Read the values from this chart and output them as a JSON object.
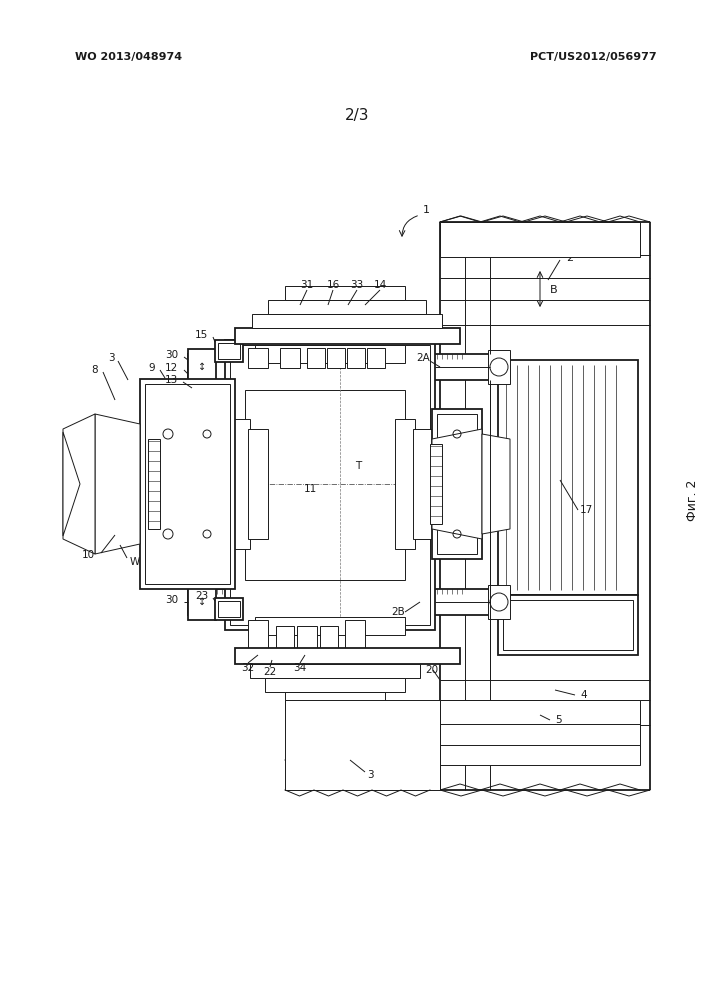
{
  "bg_color": "#ffffff",
  "lc": "#1a1a1a",
  "header_left": "WO 2013/048974",
  "header_right": "PCT/US2012/056977",
  "page_num": "2/3",
  "fig_label": "Фиг. 2",
  "lw": 0.7,
  "lw2": 1.3
}
